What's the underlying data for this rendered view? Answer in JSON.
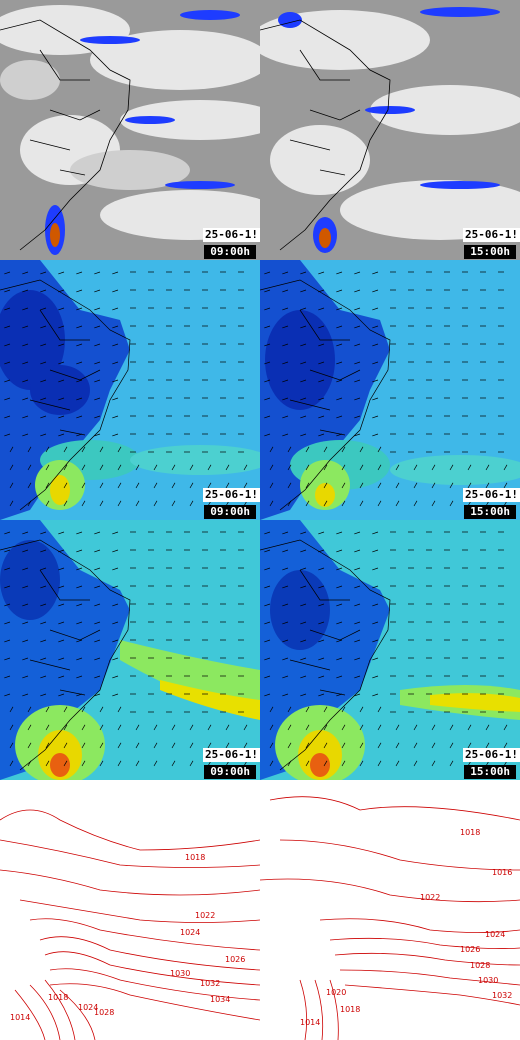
{
  "panels": [
    {
      "name": "satellite-panel-0900",
      "row": "satellite",
      "date": "25-06-1!",
      "time": "09:00h"
    },
    {
      "name": "satellite-panel-1500",
      "row": "satellite",
      "date": "25-06-1!",
      "time": "15:00h"
    },
    {
      "name": "wind-panel-0900",
      "row": "wind",
      "date": "25-06-1!",
      "time": "09:00h"
    },
    {
      "name": "wind-panel-1500",
      "row": "wind",
      "date": "25-06-1!",
      "time": "15:00h"
    },
    {
      "name": "wind-gust-panel-0900",
      "row": "gust",
      "date": "25-06-1!",
      "time": "09:00h"
    },
    {
      "name": "wind-gust-panel-1500",
      "row": "gust",
      "date": "25-06-1!",
      "time": "15:00h"
    }
  ],
  "pressure": {
    "left_labels": [
      "1018",
      "1022",
      "1024",
      "1026",
      "1030",
      "1032",
      "1034",
      "1028",
      "1024",
      "1018",
      "1014"
    ],
    "right_labels": [
      "1018",
      "1016",
      "1022",
      "1024",
      "1026",
      "1028",
      "1030",
      "1032",
      "1020",
      "1018",
      "1014"
    ]
  },
  "colors": {
    "satellite_cloud": "#f2f2f2",
    "satellite_clear": "#8f8f8f",
    "precip": "#1e3cff",
    "wind_low": "#0a2fb4",
    "wind_mid": "#3fb8e8",
    "wind_high": "#e8d800",
    "isobar": "#cc0000"
  }
}
